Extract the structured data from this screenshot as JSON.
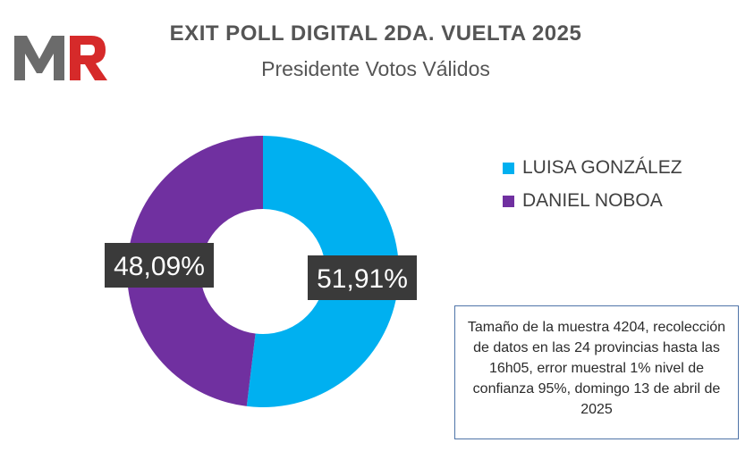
{
  "logo": {
    "text": "MR",
    "colors": {
      "M": "#6b6b6b",
      "R": "#d62a2a"
    }
  },
  "header": {
    "title": "EXIT POLL DIGITAL 2DA. VUELTA 2025",
    "subtitle": "Presidente Votos Válidos"
  },
  "chart_data": {
    "type": "pie",
    "variant": "donut",
    "title": "EXIT POLL DIGITAL 2DA. VUELTA 2025",
    "subtitle": "Presidente Votos Válidos",
    "series": [
      {
        "name": "LUISA GONZÁLEZ",
        "value": 51.91,
        "label": "51,91%",
        "color": "#00b0f0"
      },
      {
        "name": "DANIEL NOBOA",
        "value": 48.09,
        "label": "48,09%",
        "color": "#7030a0"
      }
    ],
    "legend_position": "right",
    "data_label_style": {
      "background": "#3a3a3a",
      "color": "#ffffff"
    }
  },
  "note": {
    "text": "Tamaño de la muestra 4204, recolección de datos en las 24 provincias hasta las 16h05, error muestral 1% nivel de confianza 95%, domingo 13 de abril de 2025",
    "border_color": "#4f74a8"
  }
}
